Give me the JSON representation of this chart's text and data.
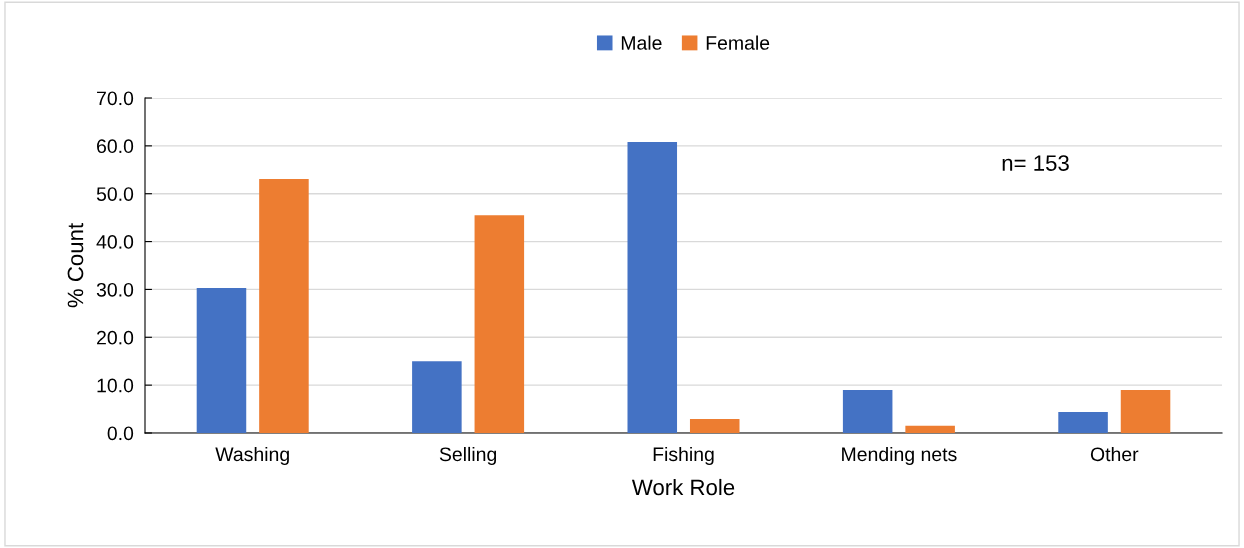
{
  "chart_data": {
    "type": "bar",
    "xlabel": "Work Role",
    "ylabel": "% Count",
    "categories": [
      "Washing",
      "Selling",
      "Fishing",
      "Mending nets",
      "Other"
    ],
    "series": [
      {
        "name": "Male",
        "color": "#4472c4",
        "values": [
          30.3,
          15.0,
          60.8,
          9.0,
          4.4
        ]
      },
      {
        "name": "Female",
        "color": "#ed7d31",
        "values": [
          53.1,
          45.5,
          2.9,
          1.5,
          9.0
        ]
      }
    ],
    "ylim": [
      0,
      70
    ],
    "yticks": [
      {
        "value": 0,
        "label": "0.0"
      },
      {
        "value": 10,
        "label": "10.0"
      },
      {
        "value": 20,
        "label": "20.0"
      },
      {
        "value": 30,
        "label": "30.0"
      },
      {
        "value": 40,
        "label": "40.0"
      },
      {
        "value": 50,
        "label": "50.0"
      },
      {
        "value": 60,
        "label": "60.0"
      },
      {
        "value": 70,
        "label": "70.0"
      }
    ],
    "grid": "y",
    "legend": "top",
    "annotations": [
      "n= 153"
    ]
  }
}
